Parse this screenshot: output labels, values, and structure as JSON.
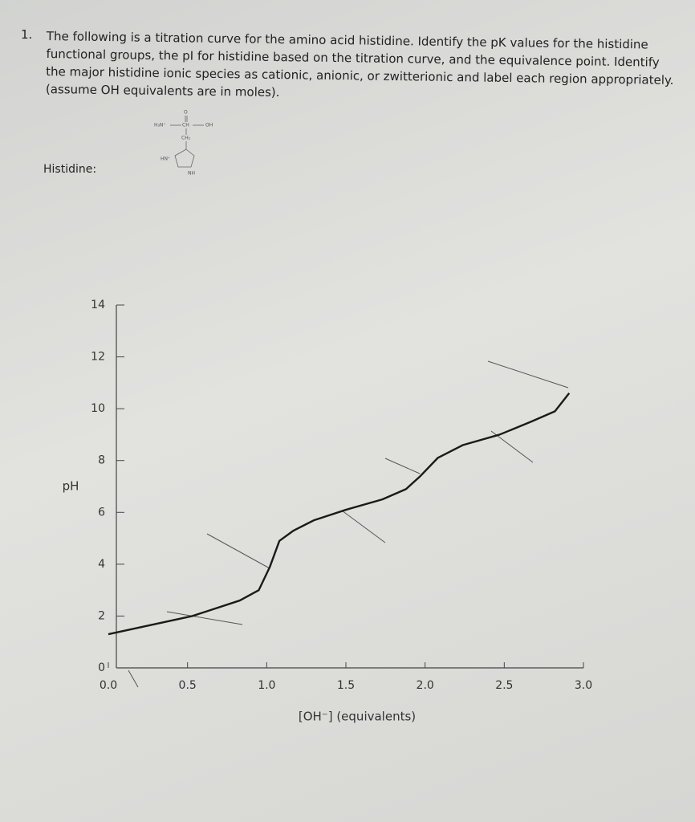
{
  "question": {
    "number": "1.",
    "text": "The following is a titration curve for the amino acid histidine. Identify the pK values for the histidine functional groups, the pI for histidine based on the titration curve, and the equivalence point. Identify the major histidine ionic species as cationic, anionic, or zwitterionic and label each region appropriately. (assume OH equivalents are in moles)."
  },
  "molecule": {
    "label": "Histidine:",
    "atoms": [
      "H₃N⁺",
      "CH",
      "OH",
      "O",
      "CH₂",
      "HN⁺",
      "NH"
    ]
  },
  "chart_data": {
    "type": "line",
    "x_label": "[OH⁻] (equivalents)",
    "y_label": "pH",
    "x": [
      0,
      0.53,
      0.83,
      0.95,
      1.02,
      1.08,
      1.17,
      1.3,
      1.5,
      1.73,
      1.88,
      1.97,
      2.08,
      2.24,
      2.47,
      2.67,
      2.82,
      2.91
    ],
    "series": [
      {
        "color": "#1a1a1a",
        "values": [
          1.3,
          2.0,
          2.6,
          3.0,
          3.9,
          4.9,
          5.3,
          5.7,
          6.1,
          6.5,
          6.9,
          7.4,
          8.1,
          8.6,
          9.0,
          9.5,
          9.9,
          10.6
        ]
      }
    ],
    "xlim": [
      0,
      3
    ],
    "ylim": [
      0,
      14
    ],
    "xticks": [
      {
        "value": 0,
        "label": "0.0"
      },
      0.5,
      {
        "value": 1,
        "label": "1.0"
      },
      1.5,
      {
        "value": 2,
        "label": "2.0"
      },
      2.5,
      {
        "value": 3,
        "label": "3.0"
      }
    ],
    "yticks": [
      0,
      2,
      4,
      6,
      8,
      10,
      12,
      14
    ]
  }
}
